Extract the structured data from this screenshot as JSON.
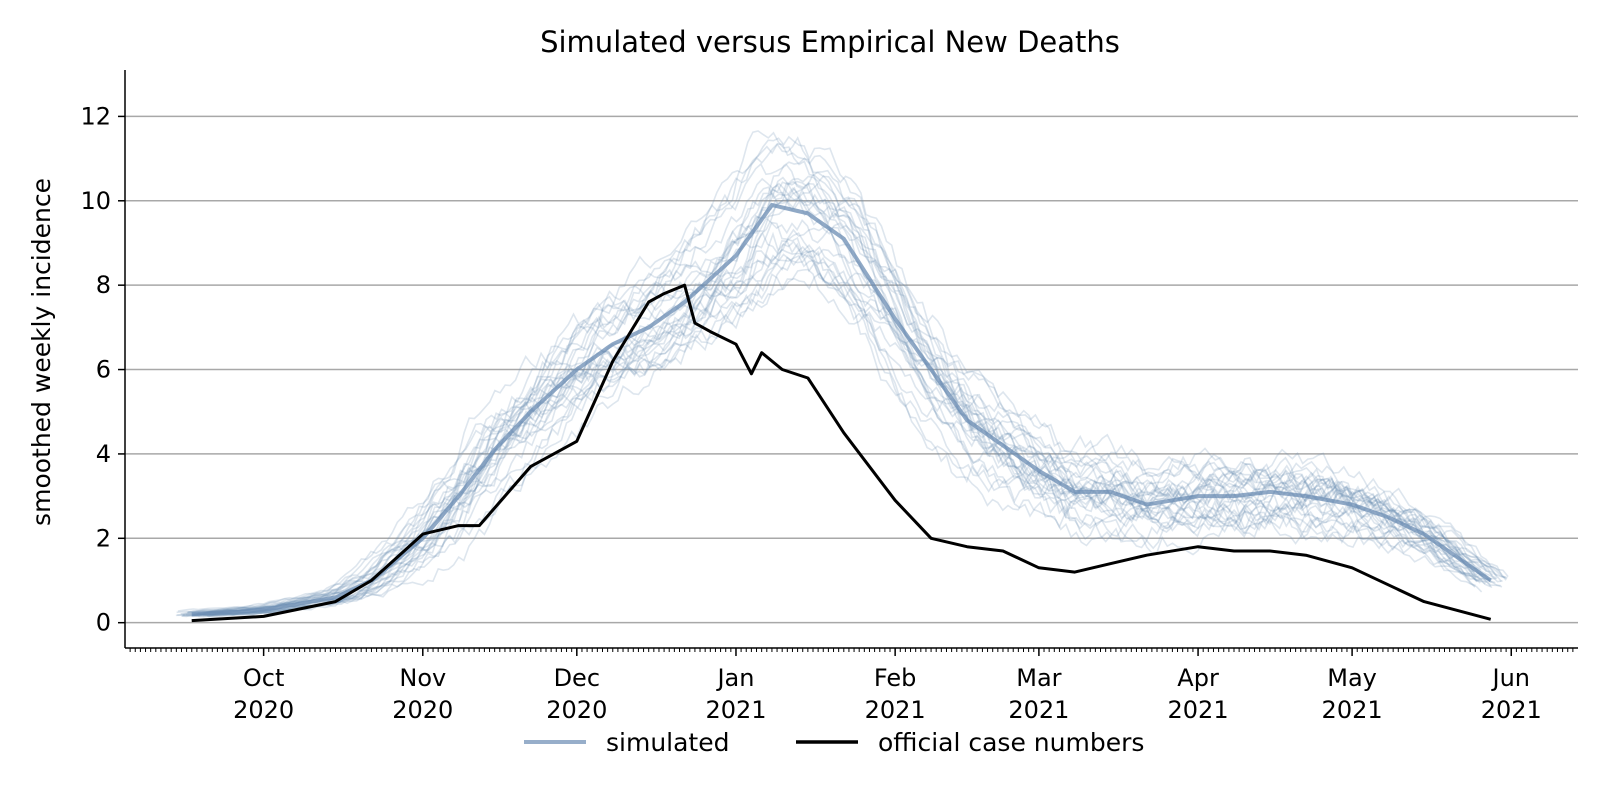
{
  "chart_data": {
    "type": "line",
    "title": "Simulated versus Empirical New Deaths",
    "xlabel": "",
    "ylabel": "smoothed weekly incidence",
    "xlim": [
      "2020-09-04",
      "2021-06-14"
    ],
    "ylim": [
      -0.6,
      13.1
    ],
    "yticks": [
      0,
      2,
      4,
      6,
      8,
      10,
      12
    ],
    "grid": "horizontal",
    "legend": "bottom-center",
    "colors": {
      "simulated": "#6b8cb3",
      "official": "#000000",
      "grid": "#a8a8a8"
    },
    "xticks": [
      {
        "date": "2020-10-01",
        "month": "Oct",
        "year": "2020"
      },
      {
        "date": "2020-11-01",
        "month": "Nov",
        "year": "2020"
      },
      {
        "date": "2020-12-01",
        "month": "Dec",
        "year": "2020"
      },
      {
        "date": "2021-01-01",
        "month": "Jan",
        "year": "2021"
      },
      {
        "date": "2021-02-01",
        "month": "Feb",
        "year": "2021"
      },
      {
        "date": "2021-03-01",
        "month": "Mar",
        "year": "2021"
      },
      {
        "date": "2021-04-01",
        "month": "Apr",
        "year": "2021"
      },
      {
        "date": "2021-05-01",
        "month": "May",
        "year": "2021"
      },
      {
        "date": "2021-06-01",
        "month": "Jun",
        "year": "2021"
      }
    ],
    "legend_entries": [
      {
        "key": "simulated",
        "label": "simulated"
      },
      {
        "key": "official",
        "label": "official case numbers"
      }
    ],
    "simulated_runs": 30,
    "series": [
      {
        "name": "simulated",
        "x": [
          "2020-09-17",
          "2020-10-01",
          "2020-10-15",
          "2020-10-22",
          "2020-11-01",
          "2020-11-08",
          "2020-11-15",
          "2020-11-22",
          "2020-12-01",
          "2020-12-08",
          "2020-12-15",
          "2020-12-22",
          "2021-01-01",
          "2021-01-08",
          "2021-01-15",
          "2021-01-22",
          "2021-02-01",
          "2021-02-08",
          "2021-02-15",
          "2021-02-22",
          "2021-03-01",
          "2021-03-08",
          "2021-03-15",
          "2021-03-22",
          "2021-04-01",
          "2021-04-08",
          "2021-04-15",
          "2021-04-22",
          "2021-05-01",
          "2021-05-08",
          "2021-05-15",
          "2021-05-28"
        ],
        "y": [
          0.2,
          0.3,
          0.6,
          1.0,
          2.0,
          3.0,
          4.1,
          5.0,
          6.0,
          6.6,
          7.0,
          7.6,
          8.7,
          9.9,
          9.7,
          9.1,
          7.2,
          6.0,
          4.8,
          4.2,
          3.6,
          3.1,
          3.1,
          2.8,
          3.0,
          3.0,
          3.1,
          3.0,
          2.8,
          2.5,
          2.1,
          1.0
        ]
      },
      {
        "name": "official case numbers",
        "x": [
          "2020-09-17",
          "2020-10-01",
          "2020-10-15",
          "2020-10-22",
          "2020-11-01",
          "2020-11-08",
          "2020-11-12",
          "2020-11-22",
          "2020-12-01",
          "2020-12-08",
          "2020-12-15",
          "2020-12-18",
          "2020-12-22",
          "2020-12-24",
          "2020-12-27",
          "2021-01-01",
          "2021-01-04",
          "2021-01-06",
          "2021-01-10",
          "2021-01-15",
          "2021-01-22",
          "2021-02-01",
          "2021-02-08",
          "2021-02-15",
          "2021-02-22",
          "2021-03-01",
          "2021-03-08",
          "2021-03-15",
          "2021-03-22",
          "2021-04-01",
          "2021-04-08",
          "2021-04-15",
          "2021-04-22",
          "2021-05-01",
          "2021-05-08",
          "2021-05-15",
          "2021-05-28"
        ],
        "y": [
          0.05,
          0.15,
          0.5,
          1.0,
          2.1,
          2.3,
          2.3,
          3.7,
          4.3,
          6.2,
          7.6,
          7.8,
          8.0,
          7.1,
          6.9,
          6.6,
          5.9,
          6.4,
          6.0,
          5.8,
          4.5,
          2.9,
          2.0,
          1.8,
          1.7,
          1.3,
          1.2,
          1.4,
          1.6,
          1.8,
          1.7,
          1.7,
          1.6,
          1.3,
          0.9,
          0.5,
          0.08
        ]
      }
    ]
  }
}
